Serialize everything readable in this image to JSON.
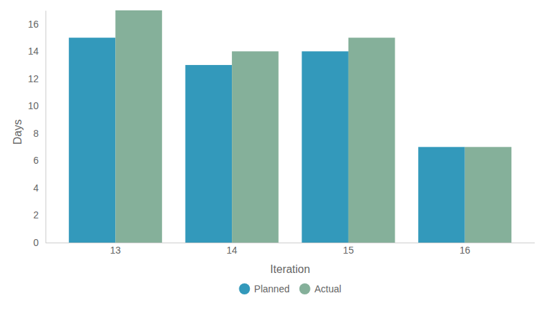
{
  "chart_data": {
    "type": "bar",
    "x_label": "Iteration",
    "y_label": "Days",
    "categories": [
      "13",
      "14",
      "15",
      "16"
    ],
    "series": [
      {
        "name": "Planned",
        "color": "#3399bb",
        "values": [
          15,
          13,
          14,
          7
        ]
      },
      {
        "name": "Actual",
        "color": "#85b09a",
        "values": [
          17,
          14,
          15,
          7
        ]
      }
    ],
    "ylim": [
      0,
      17
    ],
    "yticks": [
      0,
      2,
      4,
      6,
      8,
      10,
      12,
      14,
      16
    ],
    "grid": false,
    "legend": "bottom"
  }
}
